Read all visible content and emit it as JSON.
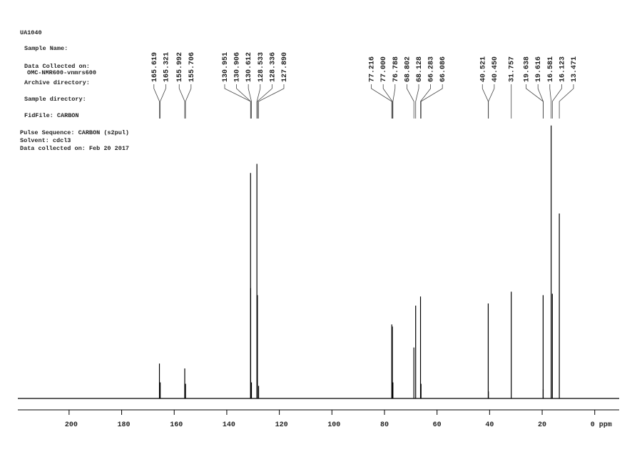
{
  "chart_data": {
    "type": "spectrum",
    "header_lines": [
      "UA1040",
      "Sample Name:",
      "Data Collected on:",
      "OMC-NMR600-vnmrs600",
      "Archive directory:",
      "Sample directory:",
      "FidFile: CARBON",
      "Pulse Sequence: CARBON (s2pul)",
      "Solvent: cdcl3",
      "Data collected on: Feb 20 2017"
    ],
    "x": [
      165.619,
      165.321,
      155.992,
      155.706,
      130.951,
      130.906,
      130.612,
      128.533,
      128.336,
      127.89,
      77.216,
      77.0,
      76.788,
      68.802,
      68.128,
      66.283,
      66.086,
      40.521,
      40.45,
      31.757,
      19.638,
      19.616,
      16.581,
      16.123,
      13.471
    ],
    "peak_labels": [
      "165.619",
      "165.321",
      "155.992",
      "155.706",
      "130.951",
      "130.906",
      "130.612",
      "128.533",
      "128.336",
      "127.890",
      "77.216",
      "77.000",
      "76.788",
      "68.802",
      "68.128",
      "66.283",
      "66.086",
      "40.521",
      "40.450",
      "31.757",
      "19.638",
      "19.616",
      "16.581",
      "16.123",
      "13.471"
    ],
    "series": [
      {
        "color": "#000000",
        "values": [
          50,
          23,
          43,
          21,
          323,
          158,
          23,
          336,
          148,
          18,
          106,
          103,
          23,
          73,
          133,
          146,
          21,
          136,
          10,
          153,
          148,
          13,
          391,
          150,
          265
        ]
      }
    ],
    "xlim": [
      219.5,
      -9.3
    ],
    "xticks": [
      200,
      180,
      160,
      140,
      120,
      100,
      80,
      60,
      40,
      20,
      {
        "value": 0,
        "label": "0 ppm"
      }
    ],
    "ylim": [
      0,
      400
    ]
  }
}
